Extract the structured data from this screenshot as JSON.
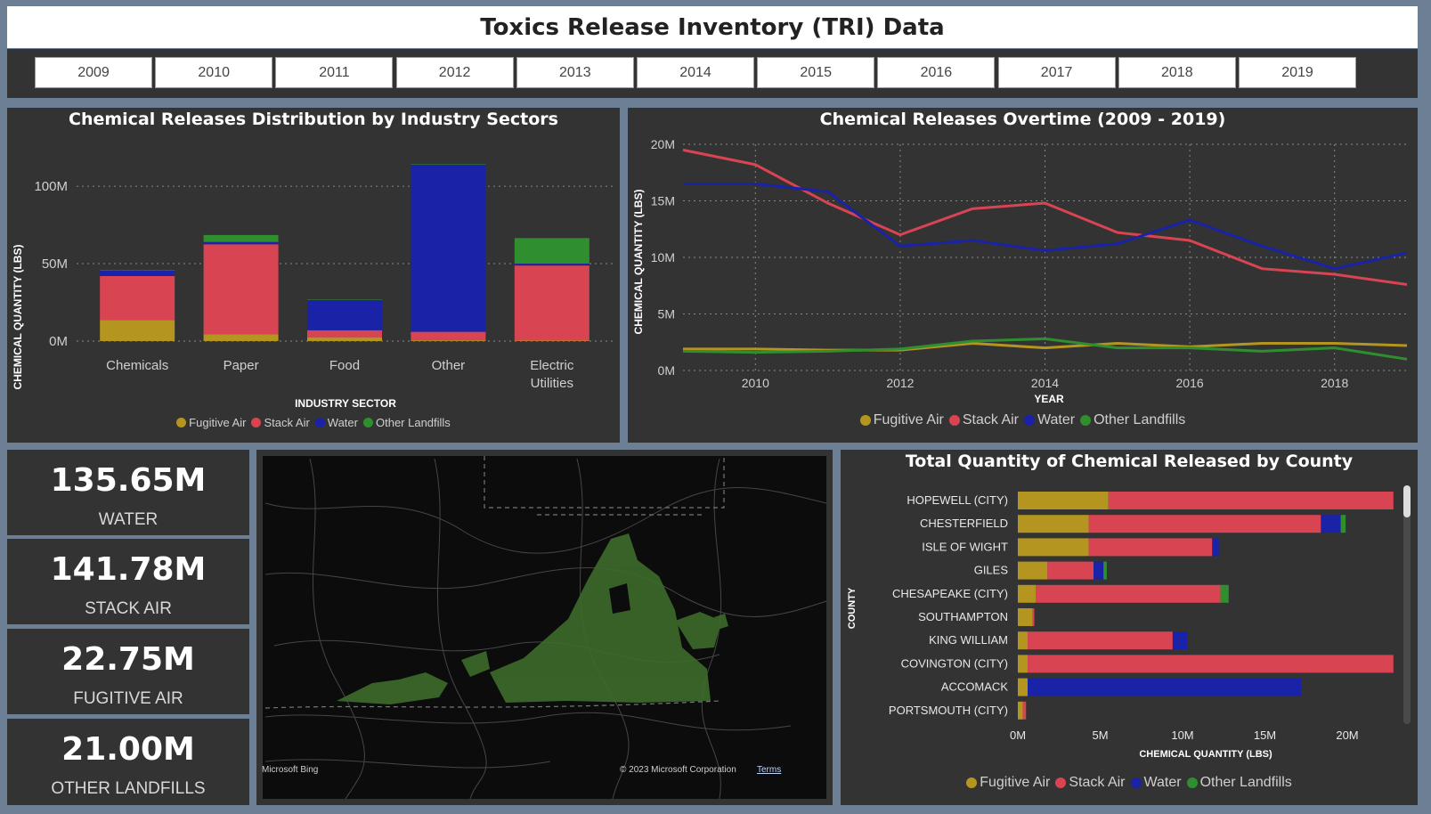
{
  "title": "Toxics Release Inventory (TRI) Data",
  "years": [
    "2009",
    "2010",
    "2011",
    "2012",
    "2013",
    "2014",
    "2015",
    "2016",
    "2017",
    "2018",
    "2019"
  ],
  "colors": {
    "fugitive_air": "#b3951f",
    "stack_air": "#d94452",
    "water": "#1a22a8",
    "other_landfills": "#2f8f2f"
  },
  "legend": [
    "Fugitive Air",
    "Stack Air",
    "Water",
    "Other Landfills"
  ],
  "kpis": [
    {
      "value": "135.65M",
      "label": "WATER"
    },
    {
      "value": "141.78M",
      "label": "STACK AIR"
    },
    {
      "value": "22.75M",
      "label": "FUGITIVE AIR"
    },
    {
      "value": "21.00M",
      "label": "OTHER LANDFILLS"
    }
  ],
  "map": {
    "brand": "Microsoft Bing",
    "copyright": "© 2023 Microsoft Corporation",
    "terms": "Terms"
  },
  "chart_data": [
    {
      "type": "bar",
      "title": "Chemical Releases Distribution by Industry Sectors",
      "xlabel": "INDUSTRY SECTOR",
      "ylabel": "CHEMICAL QUANTITY (LBS)",
      "ylim": [
        0,
        115
      ],
      "yticks": [
        "0M",
        "50M",
        "100M"
      ],
      "categories": [
        "Chemicals",
        "Paper",
        "Food",
        "Other",
        "Electric Utilities"
      ],
      "series": [
        {
          "name": "Fugitive Air",
          "values": [
            13.5,
            4.5,
            2.5,
            0.5,
            0.3
          ]
        },
        {
          "name": "Stack Air",
          "values": [
            28.5,
            58,
            4.5,
            5.5,
            48.5
          ]
        },
        {
          "name": "Water",
          "values": [
            3.5,
            1.5,
            19.5,
            108,
            1.2
          ]
        },
        {
          "name": "Other Landfills",
          "values": [
            0.3,
            4.5,
            0.3,
            0.3,
            16.5
          ]
        }
      ],
      "grid": true,
      "legend_position": "bottom"
    },
    {
      "type": "line",
      "title": "Chemical Releases Overtime (2009 - 2019)",
      "xlabel": "YEAR",
      "ylabel": "CHEMICAL QUANTITY (LBS)",
      "x": [
        2009,
        2010,
        2011,
        2012,
        2013,
        2014,
        2015,
        2016,
        2017,
        2018,
        2019
      ],
      "xticks": [
        "2010",
        "2012",
        "2014",
        "2016",
        "2018"
      ],
      "yticks": [
        "0M",
        "5M",
        "10M",
        "15M",
        "20M"
      ],
      "ylim": [
        0,
        20
      ],
      "series": [
        {
          "name": "Fugitive Air",
          "values": [
            1.9,
            1.9,
            1.8,
            1.8,
            2.4,
            2.0,
            2.4,
            2.1,
            2.4,
            2.4,
            2.2
          ]
        },
        {
          "name": "Stack Air",
          "values": [
            19.5,
            18.2,
            14.8,
            12.0,
            14.3,
            14.8,
            12.2,
            11.5,
            9.0,
            8.5,
            7.6
          ]
        },
        {
          "name": "Water",
          "values": [
            16.5,
            16.5,
            15.8,
            11.0,
            11.5,
            10.6,
            11.2,
            13.3,
            11.0,
            9.0,
            10.4
          ]
        },
        {
          "name": "Other Landfills",
          "values": [
            1.7,
            1.6,
            1.7,
            1.9,
            2.6,
            2.8,
            2.0,
            2.0,
            1.7,
            2.0,
            1.0
          ]
        }
      ],
      "grid": true,
      "legend_position": "bottom"
    },
    {
      "type": "bar",
      "orientation": "horizontal",
      "title": "Total Quantity of Chemical Released by County",
      "xlabel": "CHEMICAL QUANTITY (LBS)",
      "ylabel": "COUNTY",
      "xlim": [
        0,
        25
      ],
      "xticks": [
        "0M",
        "5M",
        "10M",
        "15M",
        "20M"
      ],
      "categories": [
        "HOPEWELL (CITY)",
        "CHESTERFIELD",
        "ISLE OF WIGHT",
        "GILES",
        "CHESAPEAKE (CITY)",
        "SOUTHAMPTON",
        "KING WILLIAM",
        "COVINGTON (CITY)",
        "ACCOMACK",
        "PORTSMOUTH (CITY)"
      ],
      "series": [
        {
          "name": "Fugitive Air",
          "values": [
            5.5,
            4.3,
            4.3,
            1.8,
            1.1,
            0.9,
            0.6,
            0.6,
            0.6,
            0.3
          ]
        },
        {
          "name": "Stack Air",
          "values": [
            17.3,
            14.1,
            7.5,
            2.8,
            11.2,
            0.1,
            8.8,
            22.2,
            0,
            0.2
          ]
        },
        {
          "name": "Water",
          "values": [
            0,
            1.2,
            0.4,
            0.6,
            0,
            0,
            0.9,
            0,
            16.6,
            0
          ]
        },
        {
          "name": "Other Landfills",
          "values": [
            0,
            0.3,
            0,
            0.2,
            0.5,
            0,
            0,
            0,
            0,
            0
          ]
        }
      ],
      "legend_position": "bottom"
    }
  ]
}
